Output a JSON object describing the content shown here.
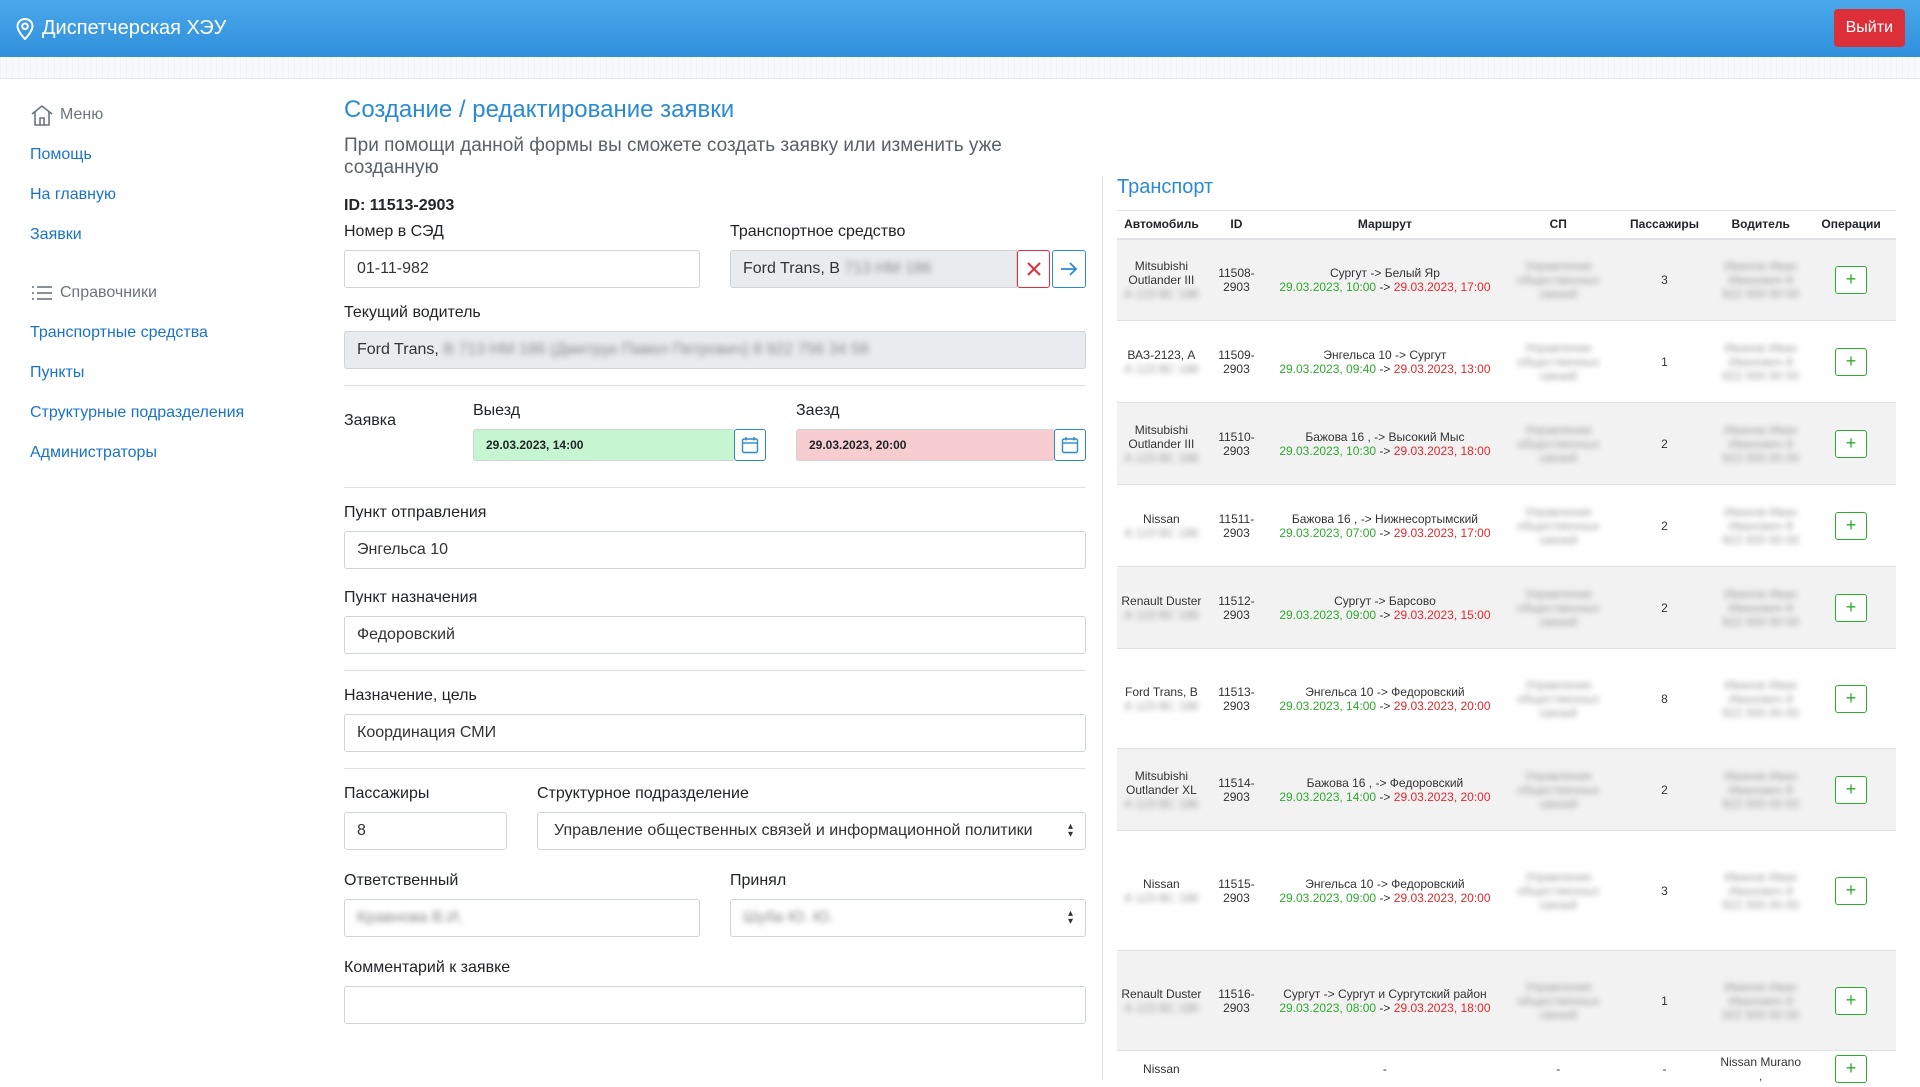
{
  "app": {
    "title": "Диспетчерская ХЭУ",
    "logout_label": "Выйти"
  },
  "sidebar": {
    "menu_heading": "Меню",
    "menu_items": [
      "Помощь",
      "На главную",
      "Заявки"
    ],
    "ref_heading": "Справочники",
    "ref_items": [
      "Транспортные средства",
      "Пункты",
      "Структурные подразделения",
      "Администраторы"
    ]
  },
  "form": {
    "title": "Создание / редактирование заявки",
    "subtitle": "При помощи данной формы вы сможете создать заявку или изменить уже созданную",
    "id_line": "ID: 11513-2903",
    "sed_label": "Номер в СЭД",
    "sed_value": "01-11-982",
    "vehicle_label": "Транспортное средство",
    "vehicle_value": "Ford Trans, В",
    "vehicle_hidden": "713 НМ 186",
    "driver_label": "Текущий водитель",
    "driver_value": "Ford Trans,",
    "driver_hidden": "В 713 НМ 186 (Дмитрук Павел Петрович) 8 922 756 34 58",
    "request_label": "Заявка",
    "depart_label": "Выезд",
    "depart_value": "29.03.2023, 14:00",
    "return_label": "Заезд",
    "return_value": "29.03.2023, 20:00",
    "origin_label": "Пункт отправления",
    "origin_value": "Энгельса 10",
    "dest_label": "Пункт назначения",
    "dest_value": "Федоровский",
    "purpose_label": "Назначение, цель",
    "purpose_value": "Координация  СМИ",
    "passengers_label": "Пассажиры",
    "passengers_value": "8",
    "dept_label": "Структурное подразделение",
    "dept_value": "Управление общественных связей и информационной политики",
    "responsible_label": "Ответственный",
    "responsible_hidden": "Кравнова В.И.",
    "accepted_label": "Принял",
    "accepted_hidden": "Шуба Ю. Ю.",
    "comment_label": "Комментарий к заявке",
    "comment_value": ""
  },
  "transport": {
    "title": "Транспорт",
    "columns": [
      "Автомобиль",
      "ID",
      "Маршрут",
      "СП",
      "Пассажиры",
      "Водитель",
      "Операции"
    ],
    "rows": [
      {
        "car": "Mitsubishi Outlander III",
        "id": "11508-2903",
        "route": "Сургут -> Белый Яр",
        "start": "29.03.2023, 10:00",
        "end": "29.03.2023, 17:00",
        "pax": "3"
      },
      {
        "car": "ВАЗ-2123, А",
        "id": "11509-2903",
        "route": "Энгельса 10 -> Сургут",
        "start": "29.03.2023, 09:40",
        "end": "29.03.2023, 13:00",
        "pax": "1"
      },
      {
        "car": "Mitsubishi Outlander III",
        "id": "11510-2903",
        "route": "Бажова 16 , -> Высокий Мыс",
        "start": "29.03.2023, 10:30",
        "end": "29.03.2023, 18:00",
        "pax": "2"
      },
      {
        "car": "Nissan",
        "id": "11511-2903",
        "route": "Бажова 16 , -> Нижнесортымский",
        "start": "29.03.2023, 07:00",
        "end": "29.03.2023, 17:00",
        "pax": "2"
      },
      {
        "car": "Renault Duster",
        "id": "11512-2903",
        "route": "Сургут -> Барсово",
        "start": "29.03.2023, 09:00",
        "end": "29.03.2023, 15:00",
        "pax": "2"
      },
      {
        "car": "Ford Trans, В",
        "id": "11513-2903",
        "route": "Энгельса 10 -> Федоровский",
        "start": "29.03.2023, 14:00",
        "end": "29.03.2023, 20:00",
        "pax": "8"
      },
      {
        "car": "Mitsubishi Outlander XL",
        "id": "11514-2903",
        "route": "Бажова 16 , -> Федоровский",
        "start": "29.03.2023, 14:00",
        "end": "29.03.2023, 20:00",
        "pax": "2"
      },
      {
        "car": "Nissan",
        "id": "11515-2903",
        "route": "Энгельса 10 -> Федоровский",
        "start": "29.03.2023, 09:00",
        "end": "29.03.2023, 20:00",
        "pax": "3"
      },
      {
        "car": "Renault Duster",
        "id": "11516-2903",
        "route": "Сургут -> Сургут и Сургутский район",
        "start": "29.03.2023, 08:00",
        "end": "29.03.2023, 18:00",
        "pax": "1"
      }
    ],
    "last_row": {
      "car": "Nissan",
      "route": "-",
      "sp": "-",
      "pax": "-",
      "driver": "Nissan Murano ,"
    },
    "hidden_sp": "Управление общественных связей",
    "hidden_driver": "Иванов Иван Иванович 8 922 000 00 00",
    "hidden_plate": "А 123 ВС 186",
    "arrow": " -> ",
    "add_symbol": "+",
    "colors": {
      "start": "#2eaa2e",
      "end": "#e0282e",
      "accent": "#2b8ad6"
    }
  }
}
